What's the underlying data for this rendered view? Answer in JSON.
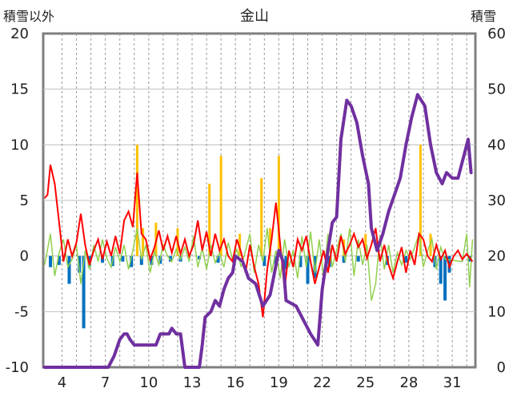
{
  "chart_data": {
    "type": "line",
    "title": "金山",
    "left_axis_label": "積雪以外",
    "right_axis_label": "積雪",
    "y_left": {
      "min": -10,
      "max": 20,
      "ticks": [
        -10,
        -5,
        0,
        5,
        10,
        15,
        20
      ]
    },
    "y_right": {
      "min": 0,
      "max": 60,
      "ticks": [
        0,
        10,
        20,
        30,
        40,
        50,
        60
      ]
    },
    "x": {
      "min": 2.7,
      "max": 32.6,
      "tick_labels": [
        4,
        7,
        10,
        13,
        16,
        19,
        22,
        25,
        28,
        31
      ]
    },
    "grid": true,
    "colors": {
      "snow_depth": "#7030a0",
      "temperature": "#ff0000",
      "wind": "#92d050",
      "precip_pos": "#ffc000",
      "precip_neg": "#0070c0"
    },
    "snow_depth": [
      [
        2.8,
        0
      ],
      [
        7.2,
        0
      ],
      [
        7.6,
        2
      ],
      [
        8.0,
        5
      ],
      [
        8.3,
        6
      ],
      [
        8.5,
        6
      ],
      [
        8.7,
        5
      ],
      [
        9.0,
        4
      ],
      [
        10.5,
        4
      ],
      [
        10.8,
        6
      ],
      [
        11.4,
        6
      ],
      [
        11.6,
        7
      ],
      [
        11.9,
        6
      ],
      [
        12.2,
        6
      ],
      [
        12.5,
        0
      ],
      [
        13.5,
        0
      ],
      [
        13.7,
        4
      ],
      [
        13.9,
        9
      ],
      [
        14.3,
        10
      ],
      [
        14.6,
        12
      ],
      [
        14.9,
        11
      ],
      [
        15.2,
        14
      ],
      [
        15.5,
        16
      ],
      [
        15.8,
        17
      ],
      [
        16.0,
        20
      ],
      [
        16.5,
        19
      ],
      [
        16.9,
        16
      ],
      [
        17.4,
        15
      ],
      [
        17.9,
        11
      ],
      [
        18.4,
        13
      ],
      [
        18.7,
        17
      ],
      [
        19.0,
        21
      ],
      [
        19.3,
        19
      ],
      [
        19.5,
        12
      ],
      [
        20.2,
        11
      ],
      [
        20.8,
        8
      ],
      [
        21.2,
        6
      ],
      [
        21.7,
        4
      ],
      [
        22.0,
        14
      ],
      [
        22.4,
        21
      ],
      [
        22.7,
        26
      ],
      [
        23.0,
        27
      ],
      [
        23.3,
        41
      ],
      [
        23.7,
        48
      ],
      [
        24.0,
        47
      ],
      [
        24.4,
        44
      ],
      [
        24.8,
        38
      ],
      [
        25.2,
        33
      ],
      [
        25.4,
        25
      ],
      [
        25.8,
        21
      ],
      [
        26.2,
        24
      ],
      [
        26.6,
        28
      ],
      [
        27.0,
        31
      ],
      [
        27.4,
        34
      ],
      [
        27.8,
        40
      ],
      [
        28.2,
        45
      ],
      [
        28.6,
        49
      ],
      [
        29.1,
        47
      ],
      [
        29.5,
        40
      ],
      [
        29.9,
        35
      ],
      [
        30.3,
        33
      ],
      [
        30.6,
        35
      ],
      [
        31.0,
        34
      ],
      [
        31.4,
        34
      ],
      [
        31.8,
        38
      ],
      [
        32.1,
        41
      ],
      [
        32.3,
        35
      ]
    ],
    "temperature": [
      [
        2.8,
        5.2
      ],
      [
        3.0,
        5.5
      ],
      [
        3.2,
        8.2
      ],
      [
        3.5,
        6.5
      ],
      [
        3.8,
        3.0
      ],
      [
        4.1,
        -0.5
      ],
      [
        4.4,
        1.5
      ],
      [
        4.7,
        0.0
      ],
      [
        5.0,
        1.2
      ],
      [
        5.3,
        3.8
      ],
      [
        5.6,
        1.0
      ],
      [
        5.9,
        -0.8
      ],
      [
        6.2,
        0.5
      ],
      [
        6.5,
        1.5
      ],
      [
        6.8,
        -0.3
      ],
      [
        7.1,
        1.3
      ],
      [
        7.4,
        0.0
      ],
      [
        7.7,
        1.8
      ],
      [
        8.0,
        0.2
      ],
      [
        8.3,
        3.2
      ],
      [
        8.6,
        4.0
      ],
      [
        8.9,
        2.6
      ],
      [
        9.2,
        7.5
      ],
      [
        9.5,
        2.0
      ],
      [
        9.8,
        1.5
      ],
      [
        10.1,
        -0.3
      ],
      [
        10.4,
        0.8
      ],
      [
        10.7,
        2.3
      ],
      [
        11.0,
        0.5
      ],
      [
        11.3,
        1.8
      ],
      [
        11.6,
        0.3
      ],
      [
        11.9,
        1.8
      ],
      [
        12.2,
        0.2
      ],
      [
        12.5,
        1.5
      ],
      [
        12.8,
        0.0
      ],
      [
        13.1,
        1.0
      ],
      [
        13.4,
        3.2
      ],
      [
        13.7,
        0.5
      ],
      [
        14.0,
        2.2
      ],
      [
        14.3,
        0.0
      ],
      [
        14.6,
        2.0
      ],
      [
        14.9,
        0.5
      ],
      [
        15.2,
        1.5
      ],
      [
        15.5,
        0.0
      ],
      [
        15.8,
        -0.5
      ],
      [
        16.1,
        1.5
      ],
      [
        16.4,
        0.3
      ],
      [
        16.7,
        -1.5
      ],
      [
        17.0,
        1.0
      ],
      [
        17.3,
        -1.0
      ],
      [
        17.6,
        -2.5
      ],
      [
        17.9,
        -5.5
      ],
      [
        18.2,
        -1.2
      ],
      [
        18.5,
        1.5
      ],
      [
        18.8,
        4.8
      ],
      [
        19.1,
        1.0
      ],
      [
        19.4,
        -3.0
      ],
      [
        19.7,
        0.5
      ],
      [
        20.0,
        -1.0
      ],
      [
        20.3,
        1.5
      ],
      [
        20.6,
        0.5
      ],
      [
        20.9,
        1.8
      ],
      [
        21.2,
        -0.5
      ],
      [
        21.5,
        -2.5
      ],
      [
        21.8,
        -1.0
      ],
      [
        22.1,
        0.5
      ],
      [
        22.4,
        -1.5
      ],
      [
        22.7,
        1.0
      ],
      [
        23.0,
        -0.5
      ],
      [
        23.3,
        1.8
      ],
      [
        23.6,
        0.2
      ],
      [
        23.9,
        1.0
      ],
      [
        24.2,
        2.0
      ],
      [
        24.5,
        0.8
      ],
      [
        24.8,
        1.5
      ],
      [
        25.1,
        -0.2
      ],
      [
        25.4,
        1.0
      ],
      [
        25.7,
        2.5
      ],
      [
        26.0,
        -0.5
      ],
      [
        26.3,
        1.0
      ],
      [
        26.6,
        -0.8
      ],
      [
        26.9,
        -2.0
      ],
      [
        27.2,
        -0.5
      ],
      [
        27.5,
        0.8
      ],
      [
        27.8,
        -1.5
      ],
      [
        28.1,
        0.5
      ],
      [
        28.4,
        -0.8
      ],
      [
        28.7,
        2.0
      ],
      [
        29.0,
        1.5
      ],
      [
        29.3,
        0.0
      ],
      [
        29.6,
        -0.5
      ],
      [
        29.9,
        1.0
      ],
      [
        30.2,
        -0.3
      ],
      [
        30.5,
        0.5
      ],
      [
        30.8,
        -1.0
      ],
      [
        31.1,
        0.0
      ],
      [
        31.4,
        0.5
      ],
      [
        31.7,
        -0.3
      ],
      [
        32.0,
        0.2
      ],
      [
        32.4,
        -0.5
      ]
    ],
    "wind": [
      [
        2.8,
        -0.8
      ],
      [
        3.2,
        2.0
      ],
      [
        3.5,
        -1.8
      ],
      [
        3.8,
        0.3
      ],
      [
        4.1,
        1.5
      ],
      [
        4.4,
        -1.0
      ],
      [
        4.7,
        -0.3
      ],
      [
        5.0,
        1.0
      ],
      [
        5.3,
        -2.5
      ],
      [
        5.6,
        0.5
      ],
      [
        5.9,
        -1.2
      ],
      [
        6.2,
        1.0
      ],
      [
        6.5,
        -0.5
      ],
      [
        6.8,
        1.5
      ],
      [
        7.1,
        -0.2
      ],
      [
        7.4,
        -1.0
      ],
      [
        7.7,
        0.8
      ],
      [
        8.0,
        -0.5
      ],
      [
        8.3,
        1.0
      ],
      [
        8.6,
        -1.2
      ],
      [
        8.9,
        0.5
      ],
      [
        9.2,
        2.5
      ],
      [
        9.5,
        -0.3
      ],
      [
        9.8,
        1.0
      ],
      [
        10.1,
        -1.5
      ],
      [
        10.4,
        0.4
      ],
      [
        10.7,
        -0.8
      ],
      [
        11.0,
        1.0
      ],
      [
        11.3,
        0.0
      ],
      [
        11.6,
        -0.5
      ],
      [
        11.9,
        0.6
      ],
      [
        12.2,
        -0.3
      ],
      [
        12.5,
        0.8
      ],
      [
        12.8,
        -0.5
      ],
      [
        13.1,
        1.8
      ],
      [
        13.4,
        -1.0
      ],
      [
        13.7,
        0.7
      ],
      [
        14.0,
        -1.2
      ],
      [
        14.3,
        1.0
      ],
      [
        14.6,
        -0.6
      ],
      [
        14.9,
        0.3
      ],
      [
        15.2,
        -1.0
      ],
      [
        15.5,
        1.2
      ],
      [
        15.8,
        -0.3
      ],
      [
        16.1,
        0.6
      ],
      [
        16.4,
        -1.0
      ],
      [
        16.7,
        0.5
      ],
      [
        17.0,
        2.0
      ],
      [
        17.3,
        -1.5
      ],
      [
        17.6,
        1.0
      ],
      [
        17.9,
        -0.5
      ],
      [
        18.2,
        2.5
      ],
      [
        18.5,
        -1.5
      ],
      [
        18.8,
        0.5
      ],
      [
        19.1,
        -2.0
      ],
      [
        19.4,
        1.5
      ],
      [
        19.7,
        -1.0
      ],
      [
        20.0,
        0.5
      ],
      [
        20.3,
        -2.0
      ],
      [
        20.6,
        1.8
      ],
      [
        20.9,
        -1.0
      ],
      [
        21.2,
        2.2
      ],
      [
        21.5,
        -1.5
      ],
      [
        21.8,
        1.5
      ],
      [
        22.1,
        -2.0
      ],
      [
        22.4,
        2.0
      ],
      [
        22.7,
        -1.0
      ],
      [
        23.0,
        0.5
      ],
      [
        23.3,
        2.0
      ],
      [
        23.6,
        -0.5
      ],
      [
        23.9,
        2.5
      ],
      [
        24.2,
        -1.8
      ],
      [
        24.5,
        1.5
      ],
      [
        24.8,
        -0.8
      ],
      [
        25.1,
        1.0
      ],
      [
        25.4,
        -4.0
      ],
      [
        25.7,
        -2.5
      ],
      [
        26.0,
        1.8
      ],
      [
        26.3,
        -1.2
      ],
      [
        26.6,
        1.0
      ],
      [
        26.9,
        -1.5
      ],
      [
        27.2,
        0.3
      ],
      [
        27.5,
        -0.8
      ],
      [
        27.8,
        0.5
      ],
      [
        28.1,
        -0.3
      ],
      [
        28.4,
        0.8
      ],
      [
        28.7,
        2.0
      ],
      [
        29.0,
        -1.0
      ],
      [
        29.3,
        0.5
      ],
      [
        29.6,
        1.5
      ],
      [
        29.9,
        -1.2
      ],
      [
        30.2,
        0.8
      ],
      [
        30.5,
        -0.3
      ],
      [
        31.7,
        -0.5
      ],
      [
        32.0,
        2.0
      ],
      [
        32.2,
        -2.8
      ],
      [
        32.4,
        1.5
      ]
    ],
    "precip_pos": [
      [
        9.2,
        10.0
      ],
      [
        9.6,
        2.5
      ],
      [
        10.5,
        3.0
      ],
      [
        12.0,
        2.5
      ],
      [
        14.2,
        6.5
      ],
      [
        15.0,
        9.0
      ],
      [
        16.3,
        2.0
      ],
      [
        17.8,
        7.0
      ],
      [
        18.4,
        2.5
      ],
      [
        19.0,
        9.0
      ],
      [
        23.5,
        1.5
      ],
      [
        25.0,
        2.0
      ],
      [
        28.8,
        10.0
      ],
      [
        29.5,
        2.0
      ]
    ],
    "precip_neg": [
      [
        3.2,
        -1.0
      ],
      [
        3.8,
        -0.8
      ],
      [
        4.5,
        -2.5
      ],
      [
        5.2,
        -1.5
      ],
      [
        5.5,
        -6.5
      ],
      [
        5.9,
        -1.0
      ],
      [
        6.8,
        -0.6
      ],
      [
        7.5,
        -0.9
      ],
      [
        8.2,
        -0.5
      ],
      [
        8.8,
        -1.0
      ],
      [
        9.5,
        -0.8
      ],
      [
        10.2,
        -0.8
      ],
      [
        10.8,
        -0.7
      ],
      [
        11.5,
        -0.5
      ],
      [
        12.2,
        -0.5
      ],
      [
        13.5,
        -0.3
      ],
      [
        14.8,
        -0.6
      ],
      [
        18.0,
        -0.9
      ],
      [
        18.8,
        -0.8
      ],
      [
        19.5,
        -1.2
      ],
      [
        20.5,
        -1.0
      ],
      [
        21.0,
        -2.5
      ],
      [
        21.5,
        -2.0
      ],
      [
        22.5,
        -1.0
      ],
      [
        23.5,
        -0.6
      ],
      [
        24.5,
        -0.5
      ],
      [
        26.5,
        -0.8
      ],
      [
        27.8,
        -0.6
      ],
      [
        29.8,
        -1.0
      ],
      [
        30.2,
        -2.5
      ],
      [
        30.5,
        -4.0
      ],
      [
        30.8,
        -1.5
      ],
      [
        32.2,
        -0.5
      ]
    ]
  }
}
